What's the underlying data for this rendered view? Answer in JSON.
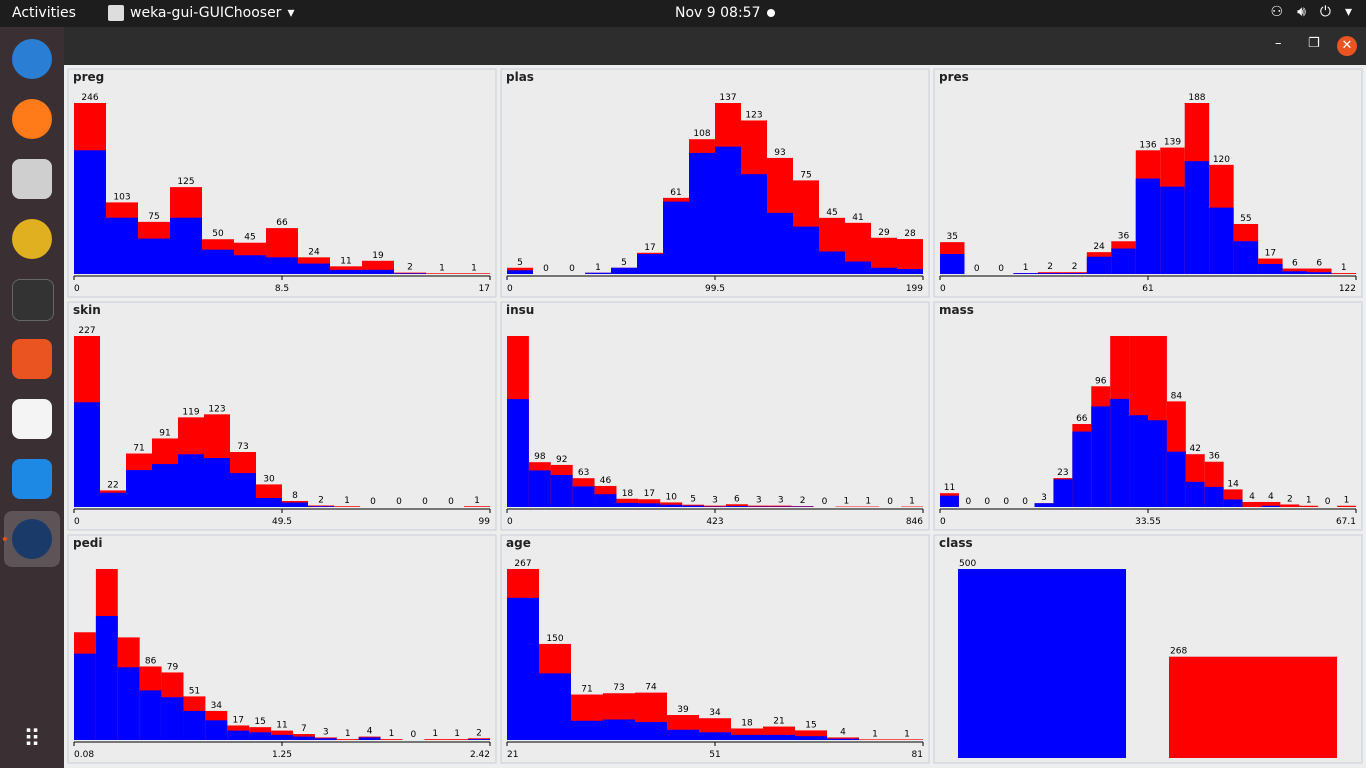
{
  "topbar": {
    "activities": "Activities",
    "app_name": "weka-gui-GUIChooser",
    "clock": "Nov 9  08:57"
  },
  "dock": {
    "apps": [
      "thunderbird-icon",
      "firefox-icon",
      "files-icon",
      "rhythmbox-icon",
      "terminal-icon",
      "app-center-icon",
      "text-editor-icon",
      "vscode-icon",
      "weka-icon",
      "app-grid-icon"
    ]
  },
  "window": {
    "controls": [
      "–",
      "❐",
      "✕"
    ]
  },
  "colors": {
    "class1": "#0000ff",
    "class2": "#ff0000"
  },
  "chart_data": [
    {
      "type": "bar",
      "title": "preg",
      "ticks": [
        "0",
        "8.5",
        "17"
      ],
      "totals": [
        246,
        103,
        75,
        125,
        50,
        45,
        66,
        24,
        11,
        19,
        2,
        1,
        1
      ],
      "blue_fraction_note": "stacked",
      "blue": [
        178,
        81,
        51,
        81,
        35,
        27,
        24,
        15,
        6,
        6,
        1,
        0,
        0
      ],
      "labels": [
        "246",
        "103",
        "75",
        "125",
        "50",
        "45",
        "66",
        "24",
        "11",
        "19",
        "2",
        "1",
        "1"
      ]
    },
    {
      "type": "bar",
      "title": "plas",
      "ticks": [
        "0",
        "99.5",
        "199"
      ],
      "totals": [
        5,
        0,
        0,
        1,
        5,
        17,
        61,
        108,
        137,
        123,
        93,
        75,
        45,
        41,
        29,
        28
      ],
      "blue": [
        3,
        0,
        0,
        1,
        5,
        16,
        58,
        97,
        102,
        80,
        49,
        38,
        18,
        10,
        5,
        4
      ],
      "labels": [
        "5",
        "0",
        "0",
        "1",
        "5",
        "17",
        "61",
        "108",
        "137",
        "123",
        "93",
        "75",
        "45",
        "41",
        "29",
        "28"
      ]
    },
    {
      "type": "bar",
      "title": "pres",
      "ticks": [
        "0",
        "61",
        "122"
      ],
      "totals": [
        35,
        0,
        0,
        1,
        2,
        2,
        24,
        36,
        136,
        139,
        188,
        120,
        55,
        17,
        6,
        6,
        1
      ],
      "blue": [
        22,
        0,
        0,
        1,
        1,
        1,
        19,
        28,
        105,
        96,
        124,
        73,
        36,
        11,
        3,
        2,
        0
      ],
      "labels": [
        "35",
        "0",
        "0",
        "1",
        "2",
        "2",
        "24",
        "36",
        "136",
        "139",
        "188",
        "120",
        "55",
        "17",
        "6",
        "6",
        "1"
      ]
    },
    {
      "type": "bar",
      "title": "skin",
      "ticks": [
        "0",
        "49.5",
        "99"
      ],
      "totals": [
        227,
        22,
        71,
        91,
        119,
        123,
        73,
        30,
        8,
        2,
        1,
        0,
        0,
        0,
        0,
        1
      ],
      "blue": [
        139,
        19,
        49,
        57,
        70,
        65,
        45,
        12,
        6,
        1,
        0,
        0,
        0,
        0,
        0,
        0
      ],
      "labels": [
        "227",
        "22",
        "71",
        "91",
        "119",
        "123",
        "73",
        "30",
        "8",
        "2",
        "1",
        "0",
        "0",
        "0",
        "0",
        "1"
      ]
    },
    {
      "type": "bar",
      "title": "insu",
      "ticks": [
        "0",
        "423",
        "846"
      ],
      "totals": [
        374,
        98,
        92,
        63,
        46,
        18,
        17,
        10,
        5,
        3,
        6,
        3,
        3,
        2,
        0,
        1,
        1,
        0,
        1
      ],
      "blue": [
        236,
        80,
        70,
        45,
        28,
        9,
        8,
        5,
        3,
        1,
        2,
        1,
        1,
        1,
        0,
        0,
        0,
        0,
        0
      ],
      "labels": [
        "",
        "98",
        "92",
        "63",
        "46",
        "18",
        "17",
        "10",
        "5",
        "3",
        "6",
        "3",
        "3",
        "2",
        "0",
        "1",
        "1",
        "0",
        "1"
      ]
    },
    {
      "type": "bar",
      "title": "mass",
      "ticks": [
        "0",
        "33.55",
        "67.1"
      ],
      "totals": [
        11,
        0,
        0,
        0,
        0,
        3,
        23,
        66,
        96,
        136,
        136,
        136,
        84,
        42,
        36,
        14,
        4,
        4,
        2,
        1,
        0,
        1
      ],
      "blue": [
        9,
        0,
        0,
        0,
        0,
        3,
        22,
        60,
        80,
        86,
        73,
        69,
        44,
        20,
        16,
        6,
        0,
        1,
        0,
        0,
        0,
        0
      ],
      "labels": [
        "11",
        "0",
        "0",
        "0",
        "0",
        "3",
        "23",
        "66",
        "96",
        "",
        "",
        "",
        "84",
        "42",
        "36",
        "14",
        "4",
        "4",
        "2",
        "1",
        "0",
        "1"
      ]
    },
    {
      "type": "bar",
      "title": "pedi",
      "ticks": [
        "0.08",
        "1.25",
        "2.42"
      ],
      "totals": [
        126,
        200,
        120,
        86,
        79,
        51,
        34,
        17,
        15,
        11,
        7,
        3,
        1,
        4,
        1,
        0,
        1,
        1,
        2
      ],
      "blue": [
        101,
        145,
        85,
        58,
        50,
        34,
        23,
        11,
        9,
        6,
        4,
        2,
        0,
        3,
        0,
        0,
        0,
        0,
        1
      ],
      "labels": [
        "",
        "",
        "",
        "86",
        "79",
        "51",
        "34",
        "17",
        "15",
        "11",
        "7",
        "3",
        "1",
        "4",
        "1",
        "0",
        "1",
        "1",
        "2"
      ]
    },
    {
      "type": "bar",
      "title": "age",
      "ticks": [
        "21",
        "51",
        "81"
      ],
      "totals": [
        267,
        150,
        71,
        73,
        74,
        39,
        34,
        18,
        21,
        15,
        4,
        1,
        1
      ],
      "blue": [
        222,
        104,
        30,
        32,
        28,
        16,
        12,
        8,
        8,
        6,
        2,
        0,
        0
      ],
      "labels": [
        "267",
        "150",
        "71",
        "73",
        "74",
        "39",
        "34",
        "18",
        "21",
        "15",
        "4",
        "1",
        "1"
      ]
    },
    {
      "type": "bar",
      "title": "class",
      "ticks": [],
      "totals": [
        500,
        268
      ],
      "classes": [
        "blue",
        "red"
      ],
      "labels": [
        "500",
        "268"
      ]
    }
  ]
}
